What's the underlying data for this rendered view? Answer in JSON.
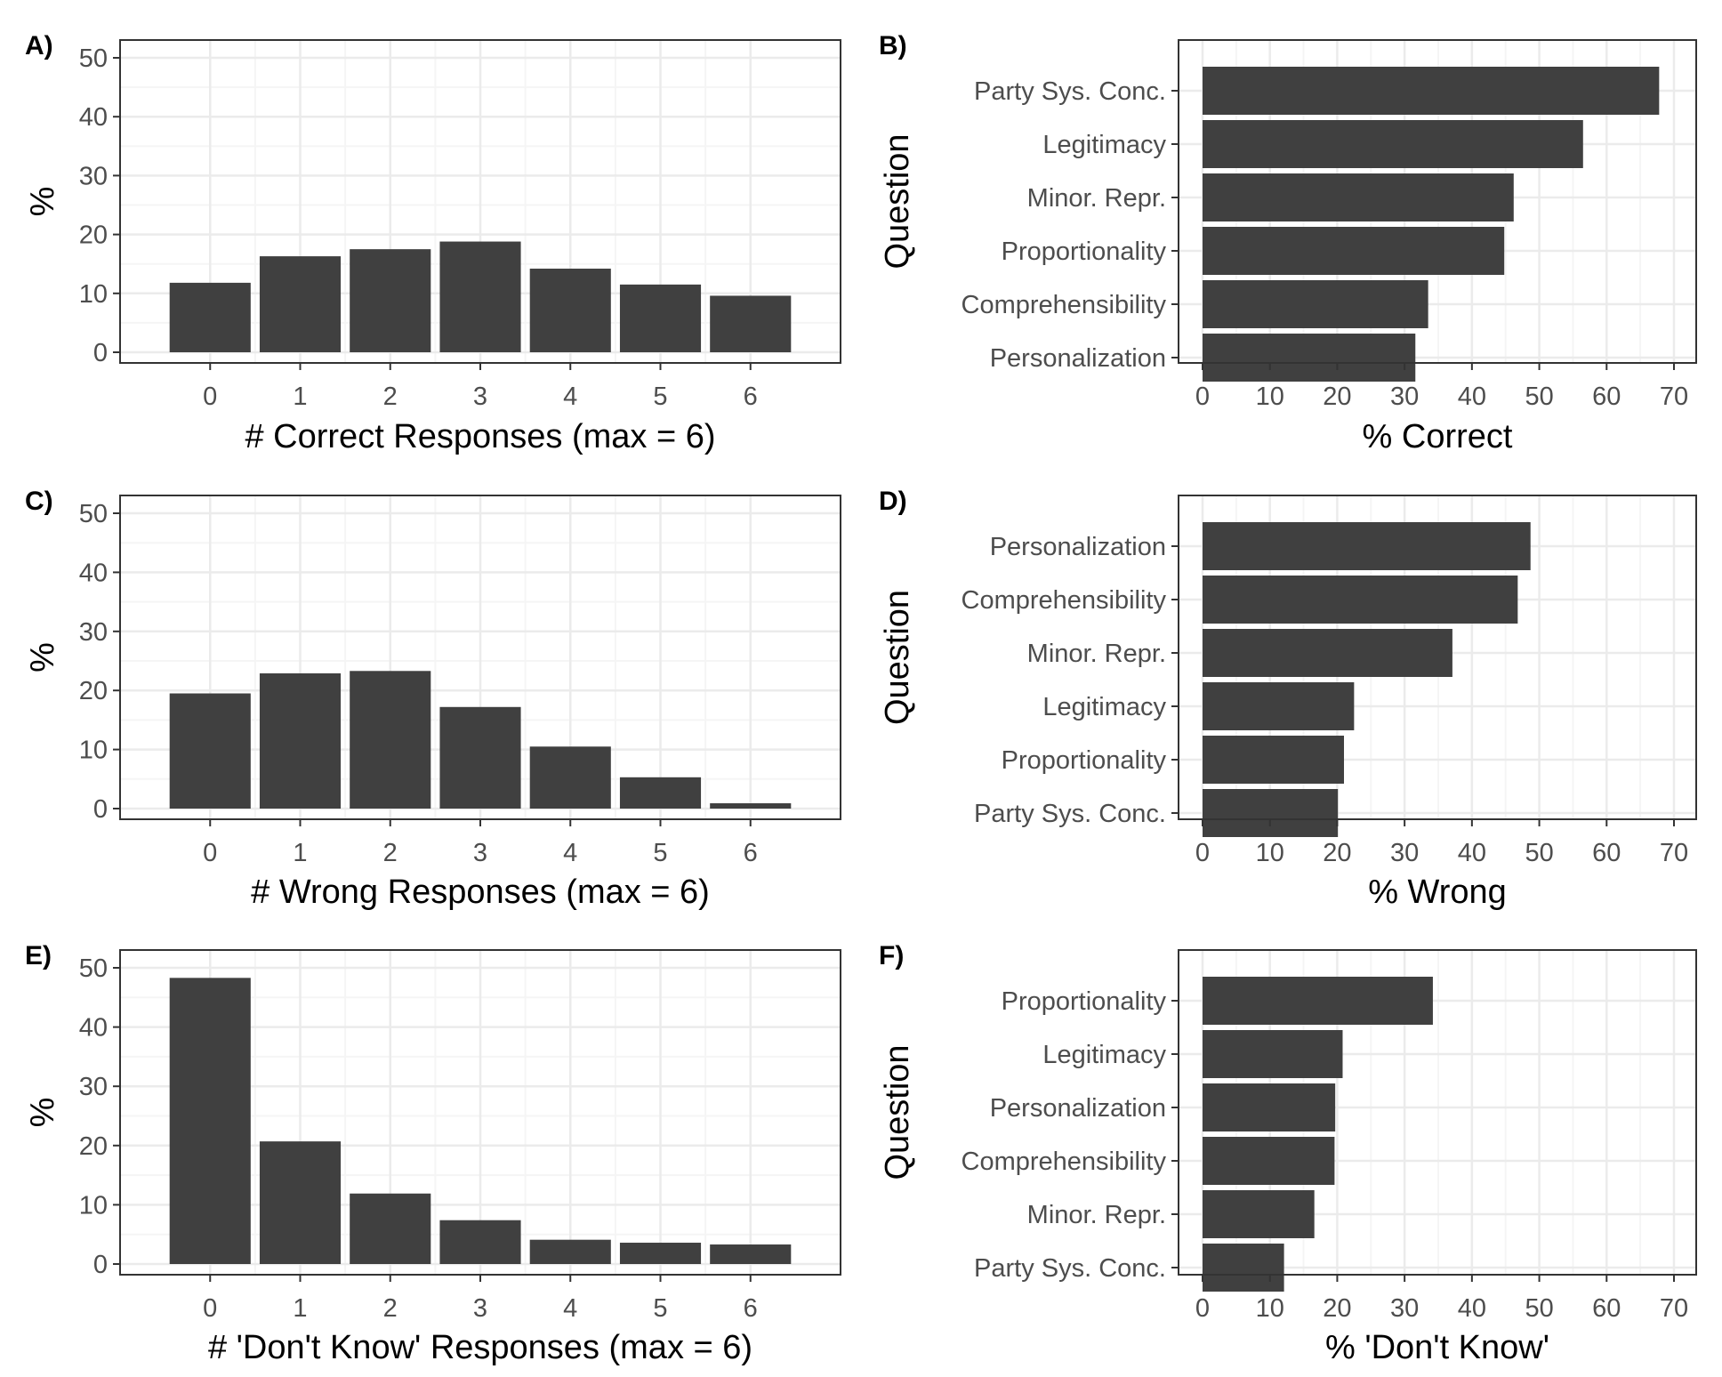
{
  "colors": {
    "bar": "#404040",
    "grid_major": "#ebebeb",
    "grid_minor": "#f5f5f5",
    "frame": "#333333",
    "tick_text": "#4d4d4d"
  },
  "chart_data": [
    {
      "panel": "A)",
      "type": "bar",
      "orientation": "vertical",
      "categories": [
        "0",
        "1",
        "2",
        "3",
        "4",
        "5",
        "6"
      ],
      "values": [
        11.8,
        16.3,
        17.5,
        18.8,
        14.2,
        11.5,
        9.6
      ],
      "xlabel": "# Correct Responses (max = 6)",
      "ylabel": "%",
      "ylim": [
        0,
        50
      ],
      "yticks": [
        "0",
        "10",
        "20",
        "30",
        "40",
        "50"
      ],
      "grid": true
    },
    {
      "panel": "B)",
      "type": "bar",
      "orientation": "horizontal",
      "categories": [
        "Party Sys. Conc.",
        "Legitimacy",
        "Minor. Repr.",
        "Proportionality",
        "Comprehensibility",
        "Personalization"
      ],
      "values": [
        67.8,
        56.5,
        46.2,
        44.8,
        33.5,
        31.6
      ],
      "xlabel": "% Correct",
      "ylabel": "Question",
      "xlim": [
        0,
        70
      ],
      "xticks": [
        "0",
        "10",
        "20",
        "30",
        "40",
        "50",
        "60",
        "70"
      ],
      "grid": true
    },
    {
      "panel": "C)",
      "type": "bar",
      "orientation": "vertical",
      "categories": [
        "0",
        "1",
        "2",
        "3",
        "4",
        "5",
        "6"
      ],
      "values": [
        19.5,
        22.9,
        23.3,
        17.2,
        10.5,
        5.3,
        0.9
      ],
      "xlabel": "# Wrong Responses (max = 6)",
      "ylabel": "%",
      "ylim": [
        0,
        50
      ],
      "yticks": [
        "0",
        "10",
        "20",
        "30",
        "40",
        "50"
      ],
      "grid": true
    },
    {
      "panel": "D)",
      "type": "bar",
      "orientation": "horizontal",
      "categories": [
        "Personalization",
        "Comprehensibility",
        "Minor. Repr.",
        "Legitimacy",
        "Proportionality",
        "Party Sys. Conc."
      ],
      "values": [
        48.7,
        46.8,
        37.1,
        22.5,
        21.0,
        20.1
      ],
      "xlabel": "% Wrong",
      "ylabel": "Question",
      "xlim": [
        0,
        70
      ],
      "xticks": [
        "0",
        "10",
        "20",
        "30",
        "40",
        "50",
        "60",
        "70"
      ],
      "grid": true
    },
    {
      "panel": "E)",
      "type": "bar",
      "orientation": "vertical",
      "categories": [
        "0",
        "1",
        "2",
        "3",
        "4",
        "5",
        "6"
      ],
      "values": [
        48.3,
        20.7,
        11.9,
        7.4,
        4.1,
        3.6,
        3.3
      ],
      "xlabel": "# 'Don't Know' Responses (max = 6)",
      "ylabel": "%",
      "ylim": [
        0,
        50
      ],
      "yticks": [
        "0",
        "10",
        "20",
        "30",
        "40",
        "50"
      ],
      "grid": true
    },
    {
      "panel": "F)",
      "type": "bar",
      "orientation": "horizontal",
      "categories": [
        "Proportionality",
        "Legitimacy",
        "Personalization",
        "Comprehensibility",
        "Minor. Repr.",
        "Party Sys. Conc."
      ],
      "values": [
        34.2,
        20.8,
        19.7,
        19.6,
        16.6,
        12.1
      ],
      "xlabel": "% 'Don't Know'",
      "ylabel": "Question",
      "xlim": [
        0,
        70
      ],
      "xticks": [
        "0",
        "10",
        "20",
        "30",
        "40",
        "50",
        "60",
        "70"
      ],
      "grid": true
    }
  ]
}
